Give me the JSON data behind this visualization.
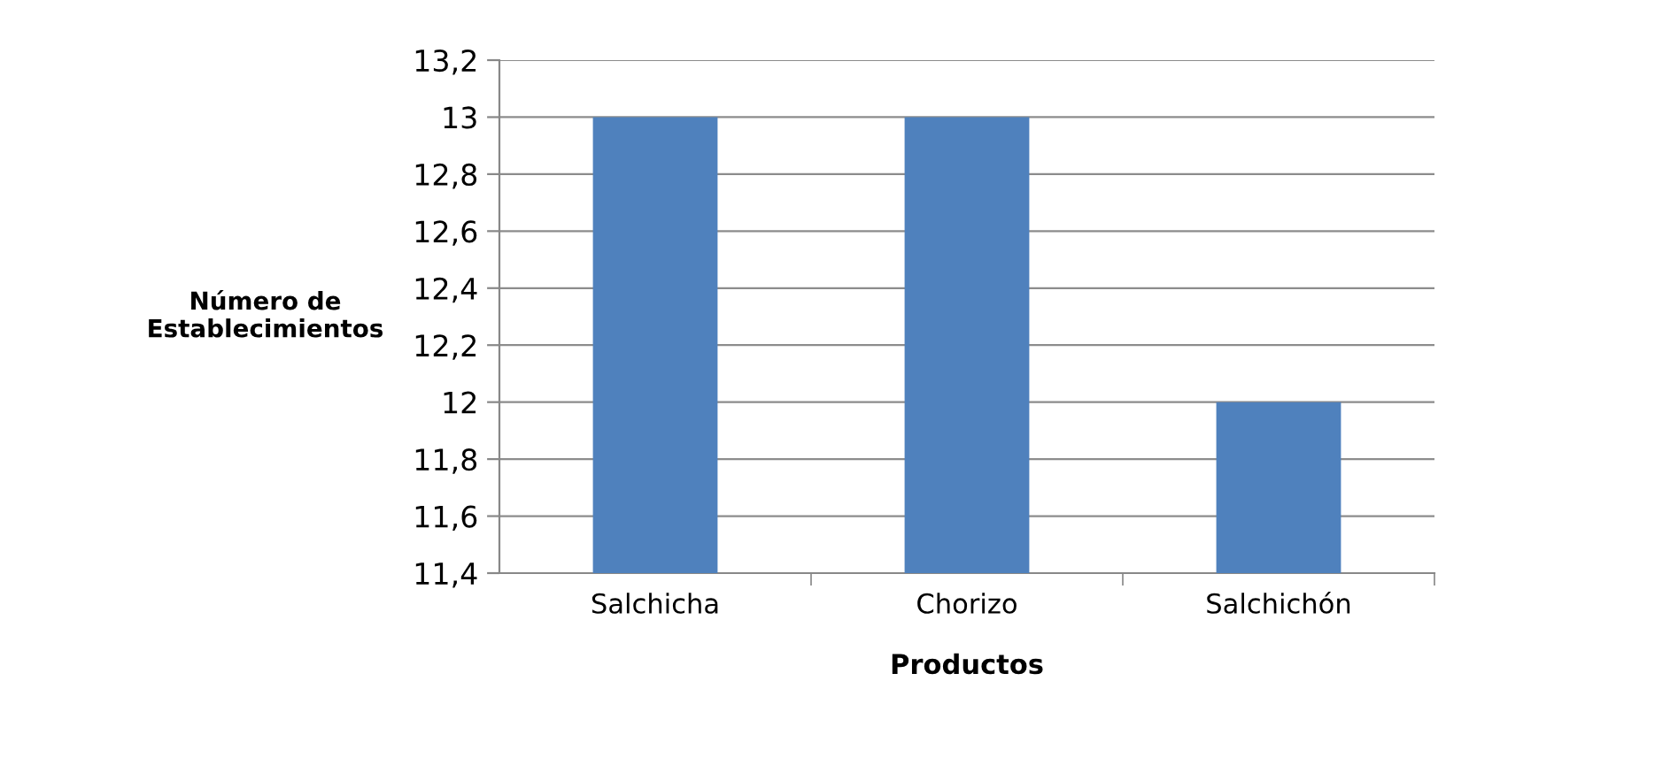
{
  "chart_data": {
    "type": "bar",
    "xlabel": "Productos",
    "ylabel": "Número de\nEstablecimientos",
    "categories": [
      "Salchicha",
      "Chorizo",
      "Salchichón"
    ],
    "values": [
      13,
      13,
      12
    ],
    "color": "#4f81bd",
    "ylim": [
      11.4,
      13.2
    ],
    "yticks": [
      {
        "value": 11.4,
        "label": "11,4"
      },
      {
        "value": 11.6,
        "label": "11,6"
      },
      {
        "value": 11.8,
        "label": "11,8"
      },
      12,
      {
        "value": 12.2,
        "label": "12,2"
      },
      {
        "value": 12.4,
        "label": "12,4"
      },
      {
        "value": 12.6,
        "label": "12,6"
      },
      {
        "value": 12.8,
        "label": "12,8"
      },
      13,
      {
        "value": 13.2,
        "label": "13,2"
      }
    ],
    "grid": "y",
    "legend": false
  }
}
